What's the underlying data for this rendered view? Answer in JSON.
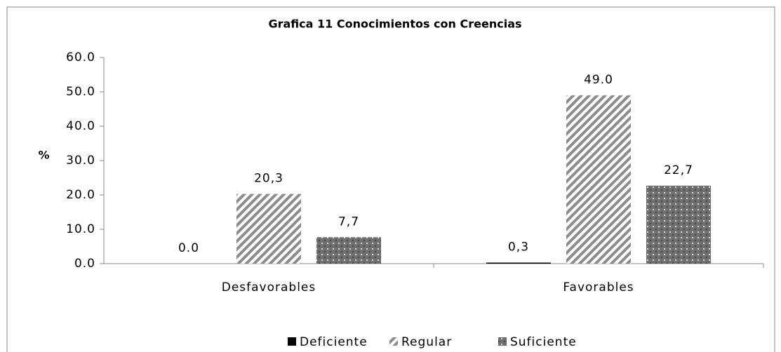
{
  "chart_data": {
    "type": "bar",
    "title": "Grafica 11 Conocimientos con Creencias",
    "y_label": "%",
    "categories": [
      "Desfavorables",
      "Favorables"
    ],
    "series": [
      {
        "name": "Deficiente",
        "color": "#000000",
        "pattern": "solid",
        "values": [
          0,
          0.3
        ],
        "value_labels": [
          "0.0",
          "0,3"
        ]
      },
      {
        "name": "Regular",
        "color": "#8c8c8c",
        "pattern": "diagonal",
        "values": [
          20.3,
          49.0
        ],
        "value_labels": [
          "20,3",
          "49.0"
        ]
      },
      {
        "name": "Suficiente",
        "color": "#6e6e6e",
        "pattern": "dots",
        "values": [
          7.7,
          22.7
        ],
        "value_labels": [
          "7,7",
          "22,7"
        ]
      }
    ],
    "ylim": [
      0,
      60
    ],
    "yticks": [
      {
        "value": 0,
        "label": "0.0"
      },
      {
        "value": 10,
        "label": "10.0"
      },
      {
        "value": 20,
        "label": "20.0"
      },
      {
        "value": 30,
        "label": "30.0"
      },
      {
        "value": 40,
        "label": "40.0"
      },
      {
        "value": 50,
        "label": "50.0"
      },
      {
        "value": 60,
        "label": "60.0"
      }
    ],
    "grid": false,
    "legend": "bottom"
  }
}
